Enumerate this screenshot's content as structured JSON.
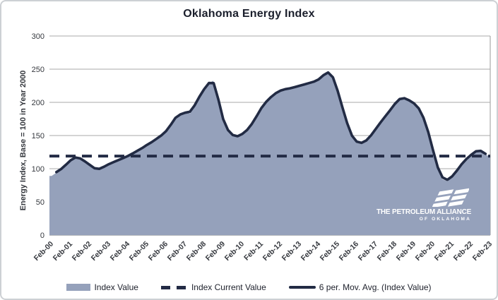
{
  "chart_data": {
    "type": "area",
    "title": "Oklahoma Energy Index",
    "ylabel": "Energy Index, Base = 100 in Year 2000",
    "xlabel": "",
    "ylim": [
      0,
      300
    ],
    "yticks": [
      0,
      50,
      100,
      150,
      200,
      250,
      300
    ],
    "x_tick_labels": [
      "Feb-00",
      "Feb-01",
      "Feb-02",
      "Feb-03",
      "Feb-04",
      "Feb-05",
      "Feb-06",
      "Feb-07",
      "Feb-08",
      "Feb-09",
      "Feb-10",
      "Feb-11",
      "Feb-12",
      "Feb-13",
      "Feb-14",
      "Feb-15",
      "Feb-16",
      "Feb-17",
      "Feb-18",
      "Feb-19",
      "Feb-20",
      "Feb-21",
      "Feb-22",
      "Feb-23"
    ],
    "grid": "horizontal",
    "legend_position": "bottom",
    "series": [
      {
        "name": "Index Value",
        "type": "area",
        "color": "#95a1bb",
        "t_start_years": 0,
        "t_step_years": 0.25,
        "t_note": "years after Feb-2000, quarterly estimates read from chart",
        "values": [
          90,
          95,
          99,
          106,
          113,
          118,
          116,
          111,
          106,
          100,
          99,
          103,
          107,
          110,
          113,
          116,
          119,
          123,
          127,
          131,
          136,
          140,
          145,
          150,
          156,
          166,
          178,
          182,
          185,
          184,
          195,
          209,
          220,
          230,
          234,
          204,
          172,
          157,
          150,
          148,
          152,
          158,
          167,
          179,
          192,
          201,
          208,
          214,
          218,
          220,
          221,
          223,
          225,
          227,
          229,
          231,
          234,
          241,
          247,
          240,
          218,
          192,
          168,
          148,
          140,
          138,
          142,
          150,
          160,
          170,
          179,
          188,
          198,
          206,
          207,
          203,
          199,
          192,
          178,
          156,
          128,
          100,
          85,
          82,
          88,
          97,
          107,
          115,
          121,
          127,
          128,
          122,
          119
        ]
      },
      {
        "name": "Index Current Value",
        "type": "constant-line",
        "style": "dashed",
        "color": "#232b45",
        "value": 119
      },
      {
        "name": "6 per. Mov. Avg. (Index Value)",
        "type": "moving-average-line",
        "color": "#222b44",
        "window_periods": 6,
        "source": "Index Value"
      }
    ]
  },
  "logo": {
    "line1": "THE PETROLEUM ALLIANCE",
    "line2": "OF OKLAHOMA"
  },
  "colors": {
    "area_fill": "#95a1bb",
    "line_navy": "#222b44",
    "gridline": "#a9a9a9",
    "title_text": "#1b1f2c",
    "tick_text": "#35383e"
  }
}
